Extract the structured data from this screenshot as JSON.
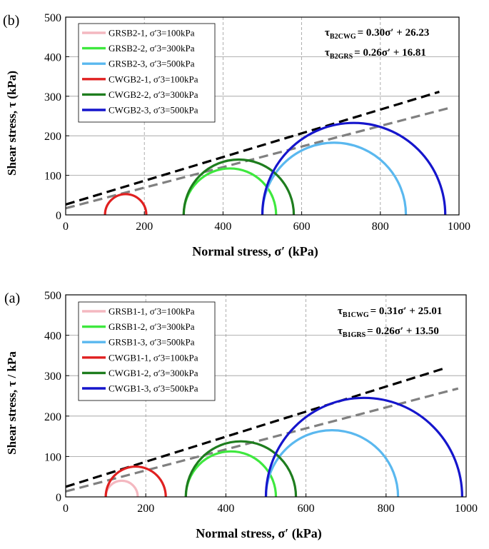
{
  "chart_data": [
    {
      "panel_label": "(b)",
      "type": "mohr_circle",
      "xlabel": "Normal stress, σ′ (kPa)",
      "ylabel": "Shear stress, τ (kPa)",
      "xlim": [
        0,
        1000
      ],
      "ylim": [
        0,
        500
      ],
      "xticks": [
        0,
        200,
        400,
        600,
        800,
        1000
      ],
      "yticks": [
        0,
        100,
        200,
        300,
        400,
        500
      ],
      "circles": [
        {
          "name": "GRSB2-1, σ′3=100kPa",
          "sigma3": 100,
          "sigma1": 100,
          "color": "#f4b8c0"
        },
        {
          "name": "GRSB2-2, σ′3=300kPa",
          "sigma3": 300,
          "sigma1": 535,
          "color": "#3ee83e"
        },
        {
          "name": "GRSB2-3, σ′3=500kPa",
          "sigma3": 500,
          "sigma1": 865,
          "color": "#5ab8ef"
        },
        {
          "name": "CWGB2-1, σ′3=100kPa",
          "sigma3": 100,
          "sigma1": 205,
          "color": "#e02020"
        },
        {
          "name": "CWGB2-2, σ′3=300kPa",
          "sigma3": 300,
          "sigma1": 580,
          "color": "#1e7d1e"
        },
        {
          "name": "CWGB2-3, σ′3=500kPa",
          "sigma3": 500,
          "sigma1": 965,
          "color": "#1515cc"
        }
      ],
      "envelopes": [
        {
          "label_sub": "B2CWG",
          "slope": 0.3,
          "intercept": 26.23,
          "color": "#000000",
          "equation": "= 0.30σ′ + 26.23",
          "x_range": [
            0,
            950
          ]
        },
        {
          "label_sub": "B2GRS",
          "slope": 0.26,
          "intercept": 16.81,
          "color": "#808080",
          "equation": "= 0.26σ′ + 16.81",
          "x_range": [
            0,
            980
          ]
        }
      ]
    },
    {
      "panel_label": "(a)",
      "type": "mohr_circle",
      "xlabel": "Normal stress, σ′ (kPa)",
      "ylabel": "Shear stress, τ / kPa",
      "xlim": [
        0,
        1000
      ],
      "ylim": [
        0,
        500
      ],
      "xticks": [
        0,
        200,
        400,
        600,
        800,
        1000
      ],
      "yticks": [
        0,
        100,
        200,
        300,
        400,
        500
      ],
      "circles": [
        {
          "name": "GRSB1-1, σ′3=100kPa",
          "sigma3": 100,
          "sigma1": 180,
          "color": "#f4b8c0"
        },
        {
          "name": "GRSB1-2, σ′3=300kPa",
          "sigma3": 300,
          "sigma1": 525,
          "color": "#3ee83e"
        },
        {
          "name": "GRSB1-3, σ′3=500kPa",
          "sigma3": 500,
          "sigma1": 830,
          "color": "#5ab8ef"
        },
        {
          "name": "CWGB1-1, σ′3=100kPa",
          "sigma3": 100,
          "sigma1": 250,
          "color": "#e02020"
        },
        {
          "name": "CWGB1-2, σ′3=300kPa",
          "sigma3": 300,
          "sigma1": 575,
          "color": "#1e7d1e"
        },
        {
          "name": "CWGB1-3, σ′3=500kPa",
          "sigma3": 500,
          "sigma1": 990,
          "color": "#1515cc"
        }
      ],
      "envelopes": [
        {
          "label_sub": "B1CWG",
          "slope": 0.31,
          "intercept": 25.01,
          "color": "#000000",
          "equation": "= 0.31σ′ + 25.01",
          "x_range": [
            0,
            950
          ]
        },
        {
          "label_sub": "B1GRS",
          "slope": 0.26,
          "intercept": 13.5,
          "color": "#808080",
          "equation": "= 0.26σ′ + 13.50",
          "x_range": [
            0,
            980
          ]
        }
      ]
    }
  ]
}
